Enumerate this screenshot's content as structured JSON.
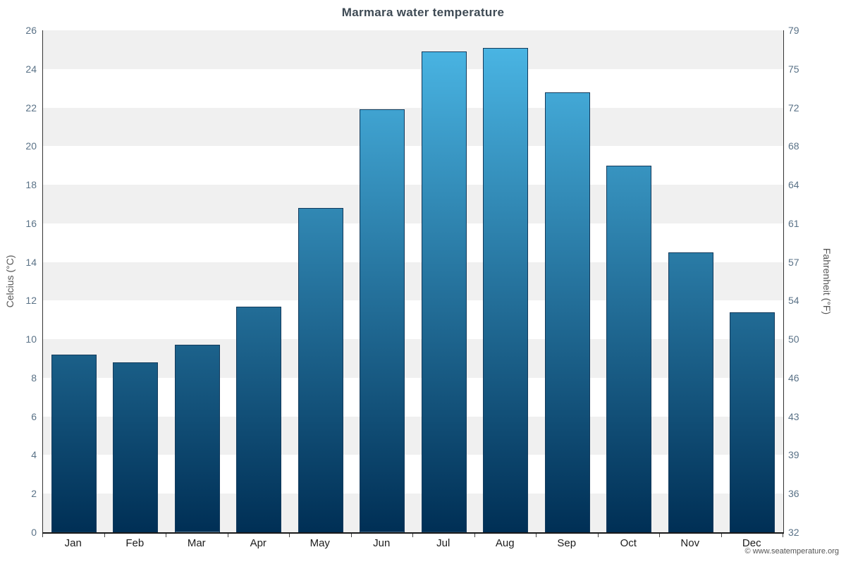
{
  "watermark": "© www.seatemperature.org",
  "chart_data": {
    "type": "bar",
    "title": "Marmara water temperature",
    "categories": [
      "Jan",
      "Feb",
      "Mar",
      "Apr",
      "May",
      "Jun",
      "Jul",
      "Aug",
      "Sep",
      "Oct",
      "Nov",
      "Dec"
    ],
    "values": [
      9.2,
      8.8,
      9.7,
      11.7,
      16.8,
      21.9,
      24.9,
      25.1,
      22.8,
      19.0,
      14.5,
      11.4
    ],
    "ylabel": "Celcius (°C)",
    "ylabel_right": "Fahrenheit (°F)",
    "xlabel": "",
    "ylim": [
      0,
      26
    ],
    "yticks_celsius": [
      0,
      2,
      4,
      6,
      8,
      10,
      12,
      14,
      16,
      18,
      20,
      22,
      24,
      26
    ],
    "yticks_fahrenheit": [
      32,
      36,
      39,
      43,
      46,
      50,
      54,
      57,
      61,
      64,
      68,
      72,
      75,
      79
    ],
    "grid": "alternating-horizontal-bands",
    "legend": "none",
    "band_color": "#f0f0f0",
    "bar_gradient_top": "#4cb9e8",
    "bar_gradient_bottom": "#002f55",
    "bar_border": "#123a5c"
  }
}
